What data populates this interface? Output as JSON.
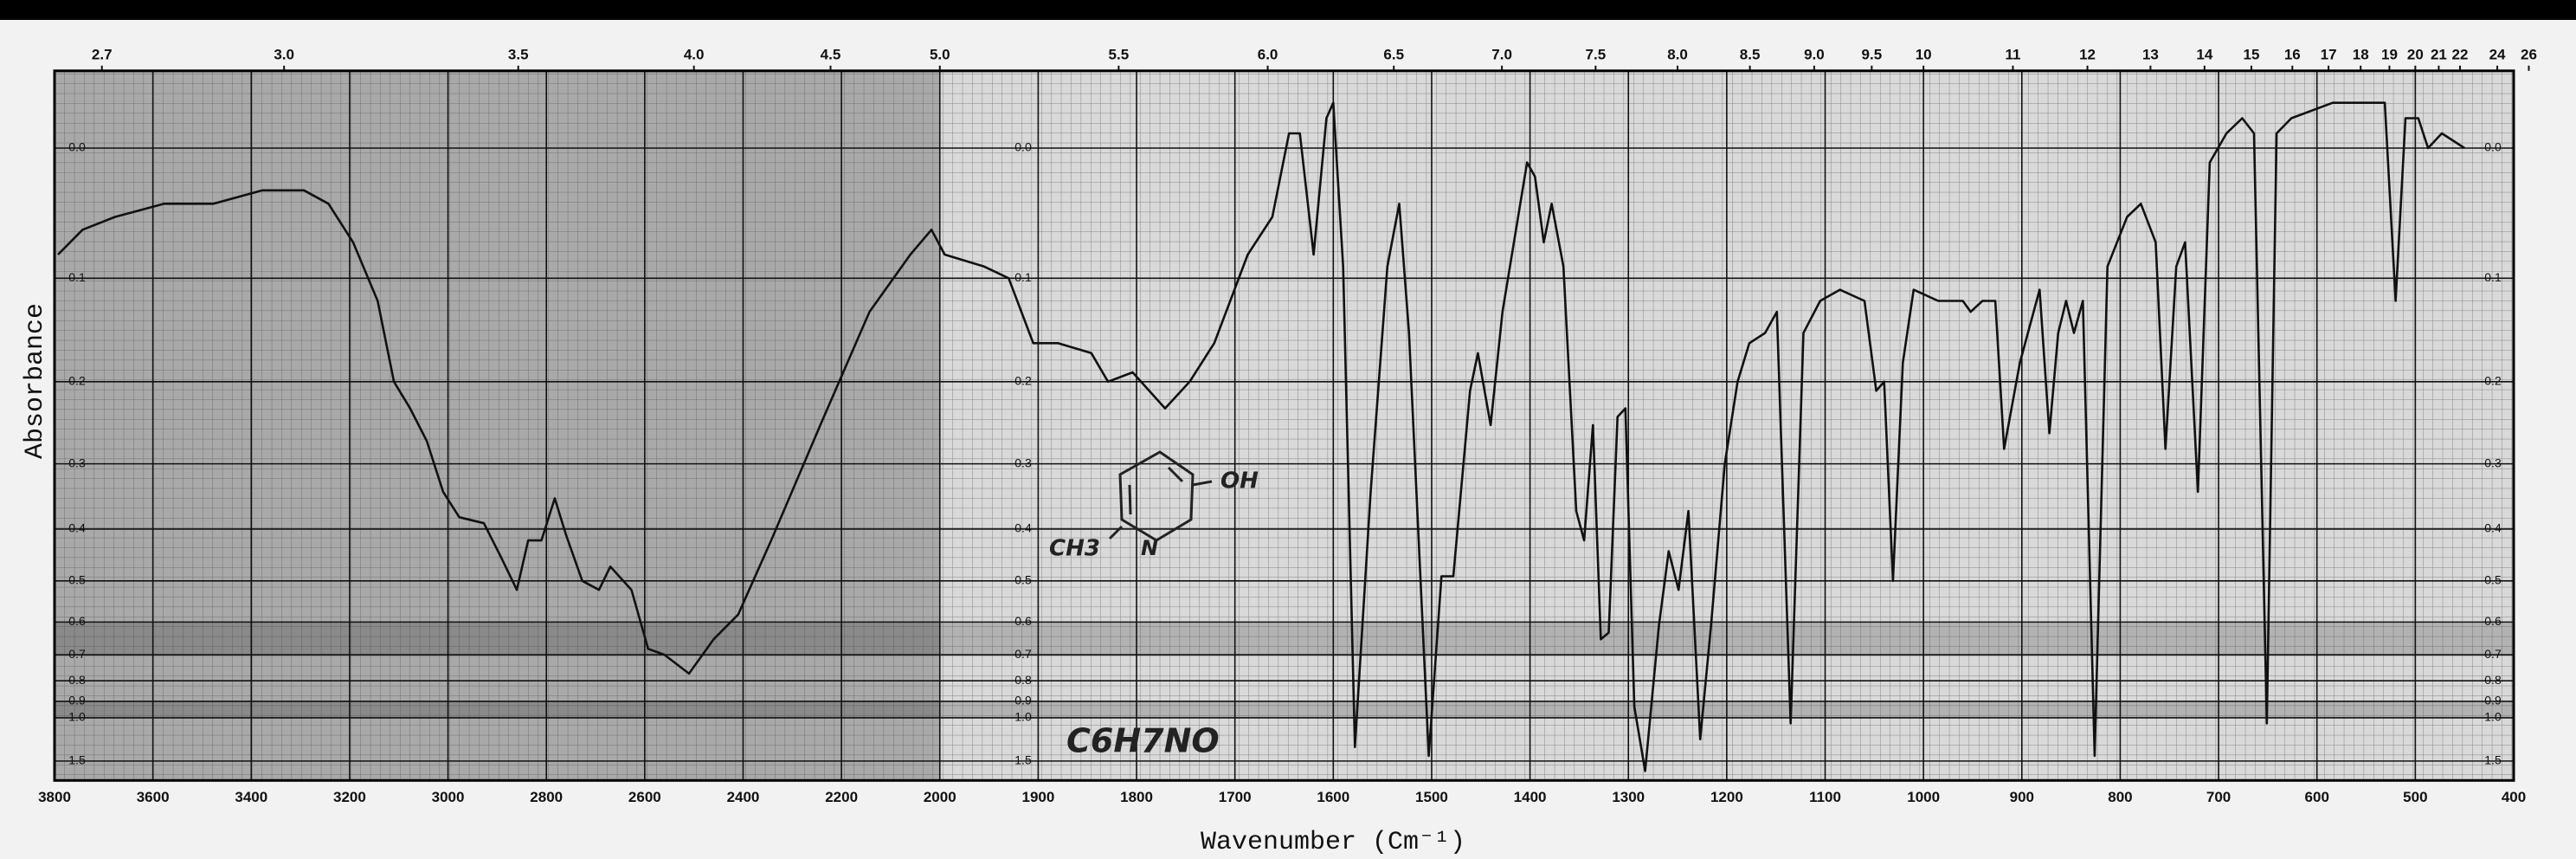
{
  "chart_data": {
    "type": "line",
    "xlabel": "Wavenumber (Cm⁻¹)",
    "ylabel": "Absorbance",
    "annotations": [
      "C6H7NO",
      "OH",
      "CH3",
      "N"
    ],
    "color": "#111111",
    "grid": true,
    "xlim": [
      3800,
      400
    ],
    "xticks": [
      3800,
      3600,
      3400,
      3200,
      3000,
      2800,
      2600,
      2400,
      2200,
      2000,
      1900,
      1800,
      1700,
      1600,
      1500,
      1400,
      1300,
      1200,
      1100,
      1000,
      900,
      800,
      700,
      600,
      500,
      400
    ],
    "x2ticks": [
      2.7,
      {
        "value": 3,
        "label": "3.0"
      },
      3.5,
      {
        "value": 4,
        "label": "4.0"
      },
      4.5,
      {
        "value": 5,
        "label": "5.0"
      },
      5.5,
      {
        "value": 6,
        "label": "6.0"
      },
      6.5,
      {
        "value": 7,
        "label": "7.0"
      },
      7.5,
      {
        "value": 8,
        "label": "8.0"
      },
      8.5,
      {
        "value": 9,
        "label": "9.0"
      },
      9.5,
      10,
      11,
      12,
      13,
      14,
      15,
      16,
      17,
      18,
      19,
      20,
      21,
      22,
      24,
      26
    ],
    "yscale": "absorbance",
    "ylim": [
      -0.05,
      3
    ],
    "yticks": [
      {
        "value": 0,
        "label": "0.0"
      },
      0.1,
      0.2,
      0.3,
      0.4,
      0.5,
      0.6,
      0.7,
      0.8,
      0.9,
      {
        "value": 1,
        "label": "1.0"
      },
      1.5
    ],
    "x": [
      3793,
      3743,
      3677,
      3577,
      3477,
      3377,
      3293,
      3243,
      3193,
      3143,
      3110,
      3077,
      3043,
      3010,
      2977,
      2927,
      2893,
      2860,
      2837,
      2810,
      2783,
      2760,
      2727,
      2693,
      2670,
      2627,
      2593,
      2560,
      2510,
      2460,
      2410,
      2343,
      2243,
      2143,
      2060,
      2017,
      1995,
      1955,
      1930,
      1905,
      1880,
      1846,
      1829,
      1804,
      1771,
      1746,
      1721,
      1687,
      1662,
      1645,
      1634,
      1620,
      1607,
      1600,
      1590,
      1578,
      1562,
      1545,
      1533,
      1523,
      1503,
      1490,
      1478,
      1461,
      1453,
      1440,
      1428,
      1403,
      1395,
      1386,
      1378,
      1366,
      1353,
      1345,
      1336,
      1328,
      1320,
      1311,
      1303,
      1294,
      1283,
      1269,
      1259,
      1249,
      1239,
      1227,
      1216,
      1202,
      1189,
      1177,
      1161,
      1149,
      1135,
      1122,
      1105,
      1085,
      1060,
      1048,
      1040,
      1031,
      1021,
      1010,
      985,
      960,
      952,
      940,
      927,
      918,
      902,
      882,
      872,
      863,
      855,
      847,
      838,
      826,
      813,
      793,
      779,
      764,
      754,
      743,
      734,
      721,
      709,
      692,
      676,
      664,
      651,
      641,
      626,
      584,
      551,
      531,
      520,
      510,
      497,
      487,
      473,
      450
    ],
    "values": [
      0.08,
      0.06,
      0.05,
      0.04,
      0.04,
      0.03,
      0.03,
      0.04,
      0.07,
      0.12,
      0.2,
      0.23,
      0.27,
      0.34,
      0.38,
      0.39,
      0.45,
      0.52,
      0.42,
      0.42,
      0.35,
      0.41,
      0.5,
      0.52,
      0.47,
      0.52,
      0.68,
      0.7,
      0.77,
      0.65,
      0.58,
      0.42,
      0.25,
      0.13,
      0.08,
      0.06,
      0.08,
      0.09,
      0.1,
      0.16,
      0.16,
      0.17,
      0.2,
      0.19,
      0.23,
      0.2,
      0.16,
      0.08,
      0.05,
      -0.01,
      -0.01,
      0.08,
      -0.02,
      -0.03,
      0.09,
      1.27,
      0.34,
      0.09,
      0.04,
      0.15,
      1.4,
      0.49,
      0.49,
      0.21,
      0.17,
      0.25,
      0.13,
      0.01,
      0.02,
      0.07,
      0.04,
      0.09,
      0.37,
      0.42,
      0.25,
      0.65,
      0.63,
      0.24,
      0.23,
      0.93,
      1.8,
      0.61,
      0.44,
      0.52,
      0.37,
      1.18,
      0.61,
      0.3,
      0.2,
      0.16,
      0.15,
      0.13,
      1.04,
      0.15,
      0.12,
      0.11,
      0.12,
      0.21,
      0.2,
      0.5,
      0.18,
      0.11,
      0.12,
      0.12,
      0.13,
      0.12,
      0.12,
      0.28,
      0.18,
      0.11,
      0.26,
      0.15,
      0.12,
      0.15,
      0.12,
      1.4,
      0.09,
      0.05,
      0.04,
      0.07,
      0.28,
      0.09,
      0.07,
      0.34,
      0.01,
      -0.01,
      -0.02,
      -0.01,
      1.04,
      -0.01,
      -0.02,
      -0.03,
      -0.03,
      -0.03,
      0.12,
      -0.02,
      -0.02,
      0,
      -0.01,
      0
    ]
  }
}
